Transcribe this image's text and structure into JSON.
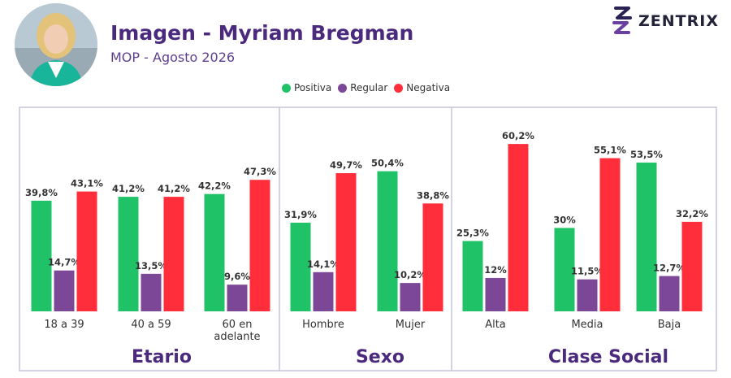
{
  "header": {
    "title": "Imagen - Myriam Bregman",
    "subtitle": "MOP - Agosto 2026",
    "logo": {
      "name": "zentrix-logo-icon",
      "text": "ZENTRIX"
    },
    "avatar": {
      "icon": "person-portrait-icon"
    }
  },
  "chart_data": {
    "type": "bar",
    "legend": {
      "position": "top-center",
      "entries": [
        "Positiva",
        "Regular",
        "Negativa"
      ]
    },
    "colors": {
      "Positiva": "#1fc266",
      "Regular": "#7c4796",
      "Negativa": "#ff2e3a"
    },
    "grid": false,
    "ylim": [
      0,
      70
    ],
    "panels": [
      {
        "title": "Etario",
        "categories": [
          [
            "18 a 39"
          ],
          [
            "40 a 59"
          ],
          [
            "60 en",
            "adelante"
          ]
        ],
        "series": [
          {
            "name": "Positiva",
            "values": [
              39.8,
              41.2,
              42.2
            ],
            "labels": [
              "39,8%",
              "41,2%",
              "42,2%"
            ]
          },
          {
            "name": "Regular",
            "values": [
              14.7,
              13.5,
              9.6
            ],
            "labels": [
              "14,7%",
              "13,5%",
              "9,6%"
            ]
          },
          {
            "name": "Negativa",
            "values": [
              43.1,
              41.2,
              47.3
            ],
            "labels": [
              "43,1%",
              "41,2%",
              "47,3%"
            ]
          }
        ]
      },
      {
        "title": "Sexo",
        "categories": [
          [
            "Hombre"
          ],
          [
            "Mujer"
          ]
        ],
        "series": [
          {
            "name": "Positiva",
            "values": [
              31.9,
              50.4
            ],
            "labels": [
              "31,9%",
              "50,4%"
            ]
          },
          {
            "name": "Regular",
            "values": [
              14.1,
              10.2
            ],
            "labels": [
              "14,1%",
              "10,2%"
            ]
          },
          {
            "name": "Negativa",
            "values": [
              49.7,
              38.8
            ],
            "labels": [
              "49,7%",
              "38,8%"
            ]
          }
        ]
      },
      {
        "title": "Clase Social",
        "categories": [
          [
            "Alta"
          ],
          [
            "Media"
          ],
          [
            "Baja"
          ]
        ],
        "series": [
          {
            "name": "Positiva",
            "values": [
              25.3,
              30,
              53.5
            ],
            "labels": [
              "25,3%",
              "30%",
              "53,5%"
            ]
          },
          {
            "name": "Regular",
            "values": [
              12,
              11.5,
              12.7
            ],
            "labels": [
              "12%",
              "11,5%",
              "12,7%"
            ]
          },
          {
            "name": "Negativa",
            "values": [
              60.2,
              55.1,
              32.2
            ],
            "labels": [
              "60,2%",
              "55,1%",
              "32,2%"
            ]
          }
        ]
      }
    ]
  }
}
